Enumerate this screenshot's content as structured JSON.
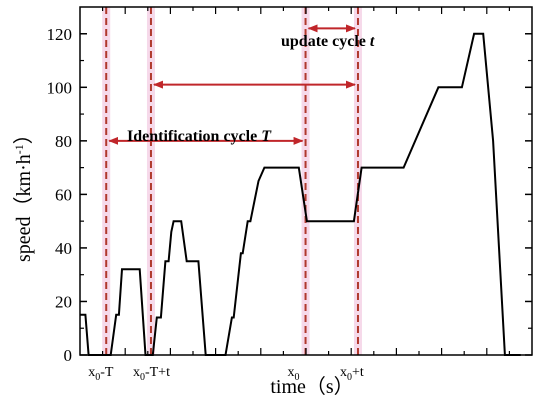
{
  "chart_data": {
    "type": "line",
    "title": "",
    "xlabel": "time（s）",
    "ylabel_main": "speed（km·h",
    "ylabel_exponent": "-1",
    "ylabel_close": "）",
    "ylim": [
      0,
      130
    ],
    "xlim": [
      0,
      100
    ],
    "yticks": [
      0,
      20,
      40,
      60,
      80,
      100,
      120
    ],
    "x_ticks_labels": false,
    "grid": false,
    "series": [
      {
        "color": "#000000",
        "points": [
          [
            0,
            15
          ],
          [
            1.2,
            15
          ],
          [
            1.9,
            0
          ],
          [
            6.8,
            0
          ],
          [
            8,
            15
          ],
          [
            8.6,
            15
          ],
          [
            9.3,
            32
          ],
          [
            13.2,
            32
          ],
          [
            14.5,
            0
          ],
          [
            16.1,
            0
          ],
          [
            17,
            14
          ],
          [
            17.9,
            14
          ],
          [
            18.9,
            35
          ],
          [
            19.6,
            35
          ],
          [
            20.2,
            46
          ],
          [
            20.7,
            50
          ],
          [
            22.4,
            50
          ],
          [
            23.6,
            35
          ],
          [
            26.2,
            35
          ],
          [
            27.8,
            0
          ],
          [
            32.2,
            0
          ],
          [
            33.6,
            14
          ],
          [
            34,
            14
          ],
          [
            35.6,
            38
          ],
          [
            36,
            38
          ],
          [
            37.1,
            50
          ],
          [
            37.7,
            50
          ],
          [
            39.5,
            65
          ],
          [
            40.8,
            70
          ],
          [
            48.4,
            70
          ],
          [
            50.2,
            50
          ],
          [
            60.6,
            50
          ],
          [
            62.3,
            70
          ],
          [
            71.6,
            70
          ],
          [
            79.3,
            100
          ],
          [
            84.5,
            100
          ],
          [
            87.2,
            120
          ],
          [
            89.2,
            120
          ],
          [
            91.4,
            80
          ],
          [
            94,
            0
          ],
          [
            97.5,
            0
          ]
        ]
      }
    ],
    "markers": [
      {
        "x": 5.8,
        "label_base": "x",
        "label_sub": "0",
        "label_rest": "-T"
      },
      {
        "x": 15.7,
        "label_base": "x",
        "label_sub": "0",
        "label_rest": "-T+t"
      },
      {
        "x": 49.9,
        "label_base": "x",
        "label_sub": "0",
        "label_rest": ""
      },
      {
        "x": 61.5,
        "label_base": "x",
        "label_sub": "0",
        "label_rest": "+t"
      }
    ],
    "arrows": [
      {
        "from": 5.8,
        "to": 49.9,
        "y": 80,
        "label": "Identification cycle ",
        "label_italic": "T"
      },
      {
        "from": 15.7,
        "to": 61.5,
        "y": 101,
        "label": "",
        "label_italic": ""
      },
      {
        "from": 49.9,
        "to": 61.5,
        "y": 122,
        "label": "update cycle ",
        "label_italic": "t"
      }
    ],
    "colors": {
      "line": "#000000",
      "marker_line": "#b0392d",
      "marker_band": "#f6d9ea",
      "arrow": "#c0262a"
    }
  }
}
